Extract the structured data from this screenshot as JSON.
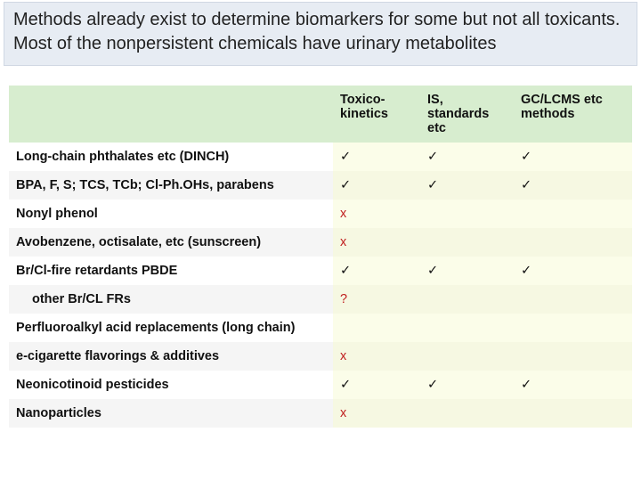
{
  "intro": {
    "text": "Methods already exist to determine biomarkers for some but not all toxicants. Most of the nonpersistent chemicals have urinary metabolites"
  },
  "table": {
    "header_bg": "#d7edcf",
    "value_bg_odd": "#fbfde9",
    "value_bg_even": "#f6f8e2",
    "label_bg_odd": "#ffffff",
    "label_bg_even": "#f5f5f5",
    "check_glyph": "✓",
    "x_glyph": "x",
    "q_glyph": "?",
    "columns": [
      {
        "label": ""
      },
      {
        "label": "Toxico-kinetics"
      },
      {
        "label": "IS, standards etc"
      },
      {
        "label": "GC/LCMS etc methods"
      }
    ],
    "rows": [
      {
        "label": "Long-chain phthalates etc (DINCH)",
        "cells": [
          "check",
          "check",
          "check"
        ]
      },
      {
        "label": "BPA, F, S; TCS, TCb; Cl-Ph.OHs, parabens",
        "cells": [
          "check",
          "check",
          "check"
        ]
      },
      {
        "label": "Nonyl phenol",
        "cells": [
          "x",
          "",
          ""
        ]
      },
      {
        "label": "Avobenzene, octisalate, etc (sunscreen)",
        "cells": [
          "x",
          "",
          ""
        ]
      },
      {
        "label": "Br/Cl-fire retardants PBDE",
        "cells": [
          "check",
          "check",
          "check"
        ]
      },
      {
        "label": "other Br/CL FRs",
        "indent": true,
        "cells": [
          "q",
          "",
          ""
        ]
      },
      {
        "label": "Perfluoroalkyl acid replacements (long chain)",
        "cells": [
          "",
          "",
          ""
        ]
      },
      {
        "label": "e-cigarette flavorings & additives",
        "cells": [
          "x",
          "",
          ""
        ]
      },
      {
        "label": "Neonicotinoid pesticides",
        "cells": [
          "check",
          "check",
          "check"
        ]
      },
      {
        "label": "Nanoparticles",
        "cells": [
          "x",
          "",
          ""
        ]
      }
    ]
  }
}
